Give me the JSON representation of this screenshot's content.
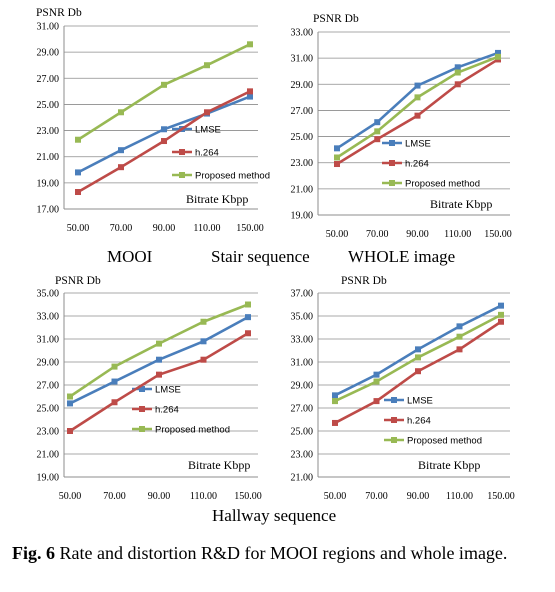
{
  "colors": {
    "lmse": "#4a7ebb",
    "h264": "#be4b48",
    "proposed": "#98b954",
    "grid": "#8c8c8c",
    "axis": "#8c8c8c"
  },
  "labels": {
    "moi": "MOOI",
    "stair": "Stair sequence",
    "whole": "WHOLE  image",
    "hallway": "Hallway sequence",
    "fig_prefix": "Fig. 6",
    "fig_text": " Rate and distortion R&D for MOOI regions and whole image."
  },
  "chart_data": [
    {
      "type": "line",
      "ylabel": "PSNR Db",
      "xlabel": "Bitrate Kbpp",
      "categories": [
        "50.00",
        "70.00",
        "90.00",
        "110.00",
        "150.00"
      ],
      "y_ticks": [
        "17.00",
        "19.00",
        "21.00",
        "23.00",
        "25.00",
        "27.00",
        "29.00",
        "31.00"
      ],
      "ylim": [
        17,
        31
      ],
      "grid": true,
      "series": [
        {
          "name": "LMSE",
          "values": [
            19.8,
            21.5,
            23.1,
            24.3,
            25.6
          ]
        },
        {
          "name": "h.264",
          "values": [
            18.3,
            20.2,
            22.2,
            24.4,
            26.0
          ]
        },
        {
          "name": "Proposed method",
          "values": [
            22.3,
            24.4,
            26.5,
            28.0,
            29.6
          ]
        }
      ]
    },
    {
      "type": "line",
      "ylabel": "PSNR Db",
      "xlabel": "Bitrate Kbpp",
      "categories": [
        "50.00",
        "70.00",
        "90.00",
        "110.00",
        "150.00"
      ],
      "y_ticks": [
        "19.00",
        "21.00",
        "23.00",
        "25.00",
        "27.00",
        "29.00",
        "31.00",
        "33.00"
      ],
      "ylim": [
        19,
        33
      ],
      "grid": true,
      "series": [
        {
          "name": "LMSE",
          "values": [
            24.1,
            26.1,
            28.9,
            30.3,
            31.4
          ]
        },
        {
          "name": "h.264",
          "values": [
            22.9,
            24.8,
            26.6,
            29.0,
            30.9
          ]
        },
        {
          "name": "Proposed method",
          "values": [
            23.4,
            25.4,
            28.0,
            29.9,
            31.1
          ]
        }
      ]
    },
    {
      "type": "line",
      "ylabel": "PSNR Db",
      "xlabel": "Bitrate Kbpp",
      "categories": [
        "50.00",
        "70.00",
        "90.00",
        "110.00",
        "150.00"
      ],
      "y_ticks": [
        "19.00",
        "21.00",
        "23.00",
        "25.00",
        "27.00",
        "29.00",
        "31.00",
        "33.00",
        "35.00"
      ],
      "ylim": [
        19,
        35
      ],
      "grid": true,
      "series": [
        {
          "name": "LMSE",
          "values": [
            25.4,
            27.3,
            29.2,
            30.8,
            32.9
          ]
        },
        {
          "name": "h.264",
          "values": [
            23.0,
            25.5,
            27.9,
            29.2,
            31.5
          ]
        },
        {
          "name": "Proposed method",
          "values": [
            26.0,
            28.6,
            30.6,
            32.5,
            34.0
          ]
        }
      ]
    },
    {
      "type": "line",
      "ylabel": "PSNR Db",
      "xlabel": "Bitrate Kbpp",
      "categories": [
        "50.00",
        "70.00",
        "90.00",
        "110.00",
        "150.00"
      ],
      "y_ticks": [
        "21.00",
        "23.00",
        "25.00",
        "27.00",
        "29.00",
        "31.00",
        "33.00",
        "35.00",
        "37.00"
      ],
      "ylim": [
        21,
        37
      ],
      "grid": true,
      "series": [
        {
          "name": "LMSE",
          "values": [
            28.1,
            29.9,
            32.1,
            34.1,
            35.9
          ]
        },
        {
          "name": "h.264",
          "values": [
            25.7,
            27.6,
            30.2,
            32.1,
            34.5
          ]
        },
        {
          "name": "Proposed method",
          "values": [
            27.6,
            29.3,
            31.4,
            33.2,
            35.1
          ]
        }
      ]
    }
  ]
}
